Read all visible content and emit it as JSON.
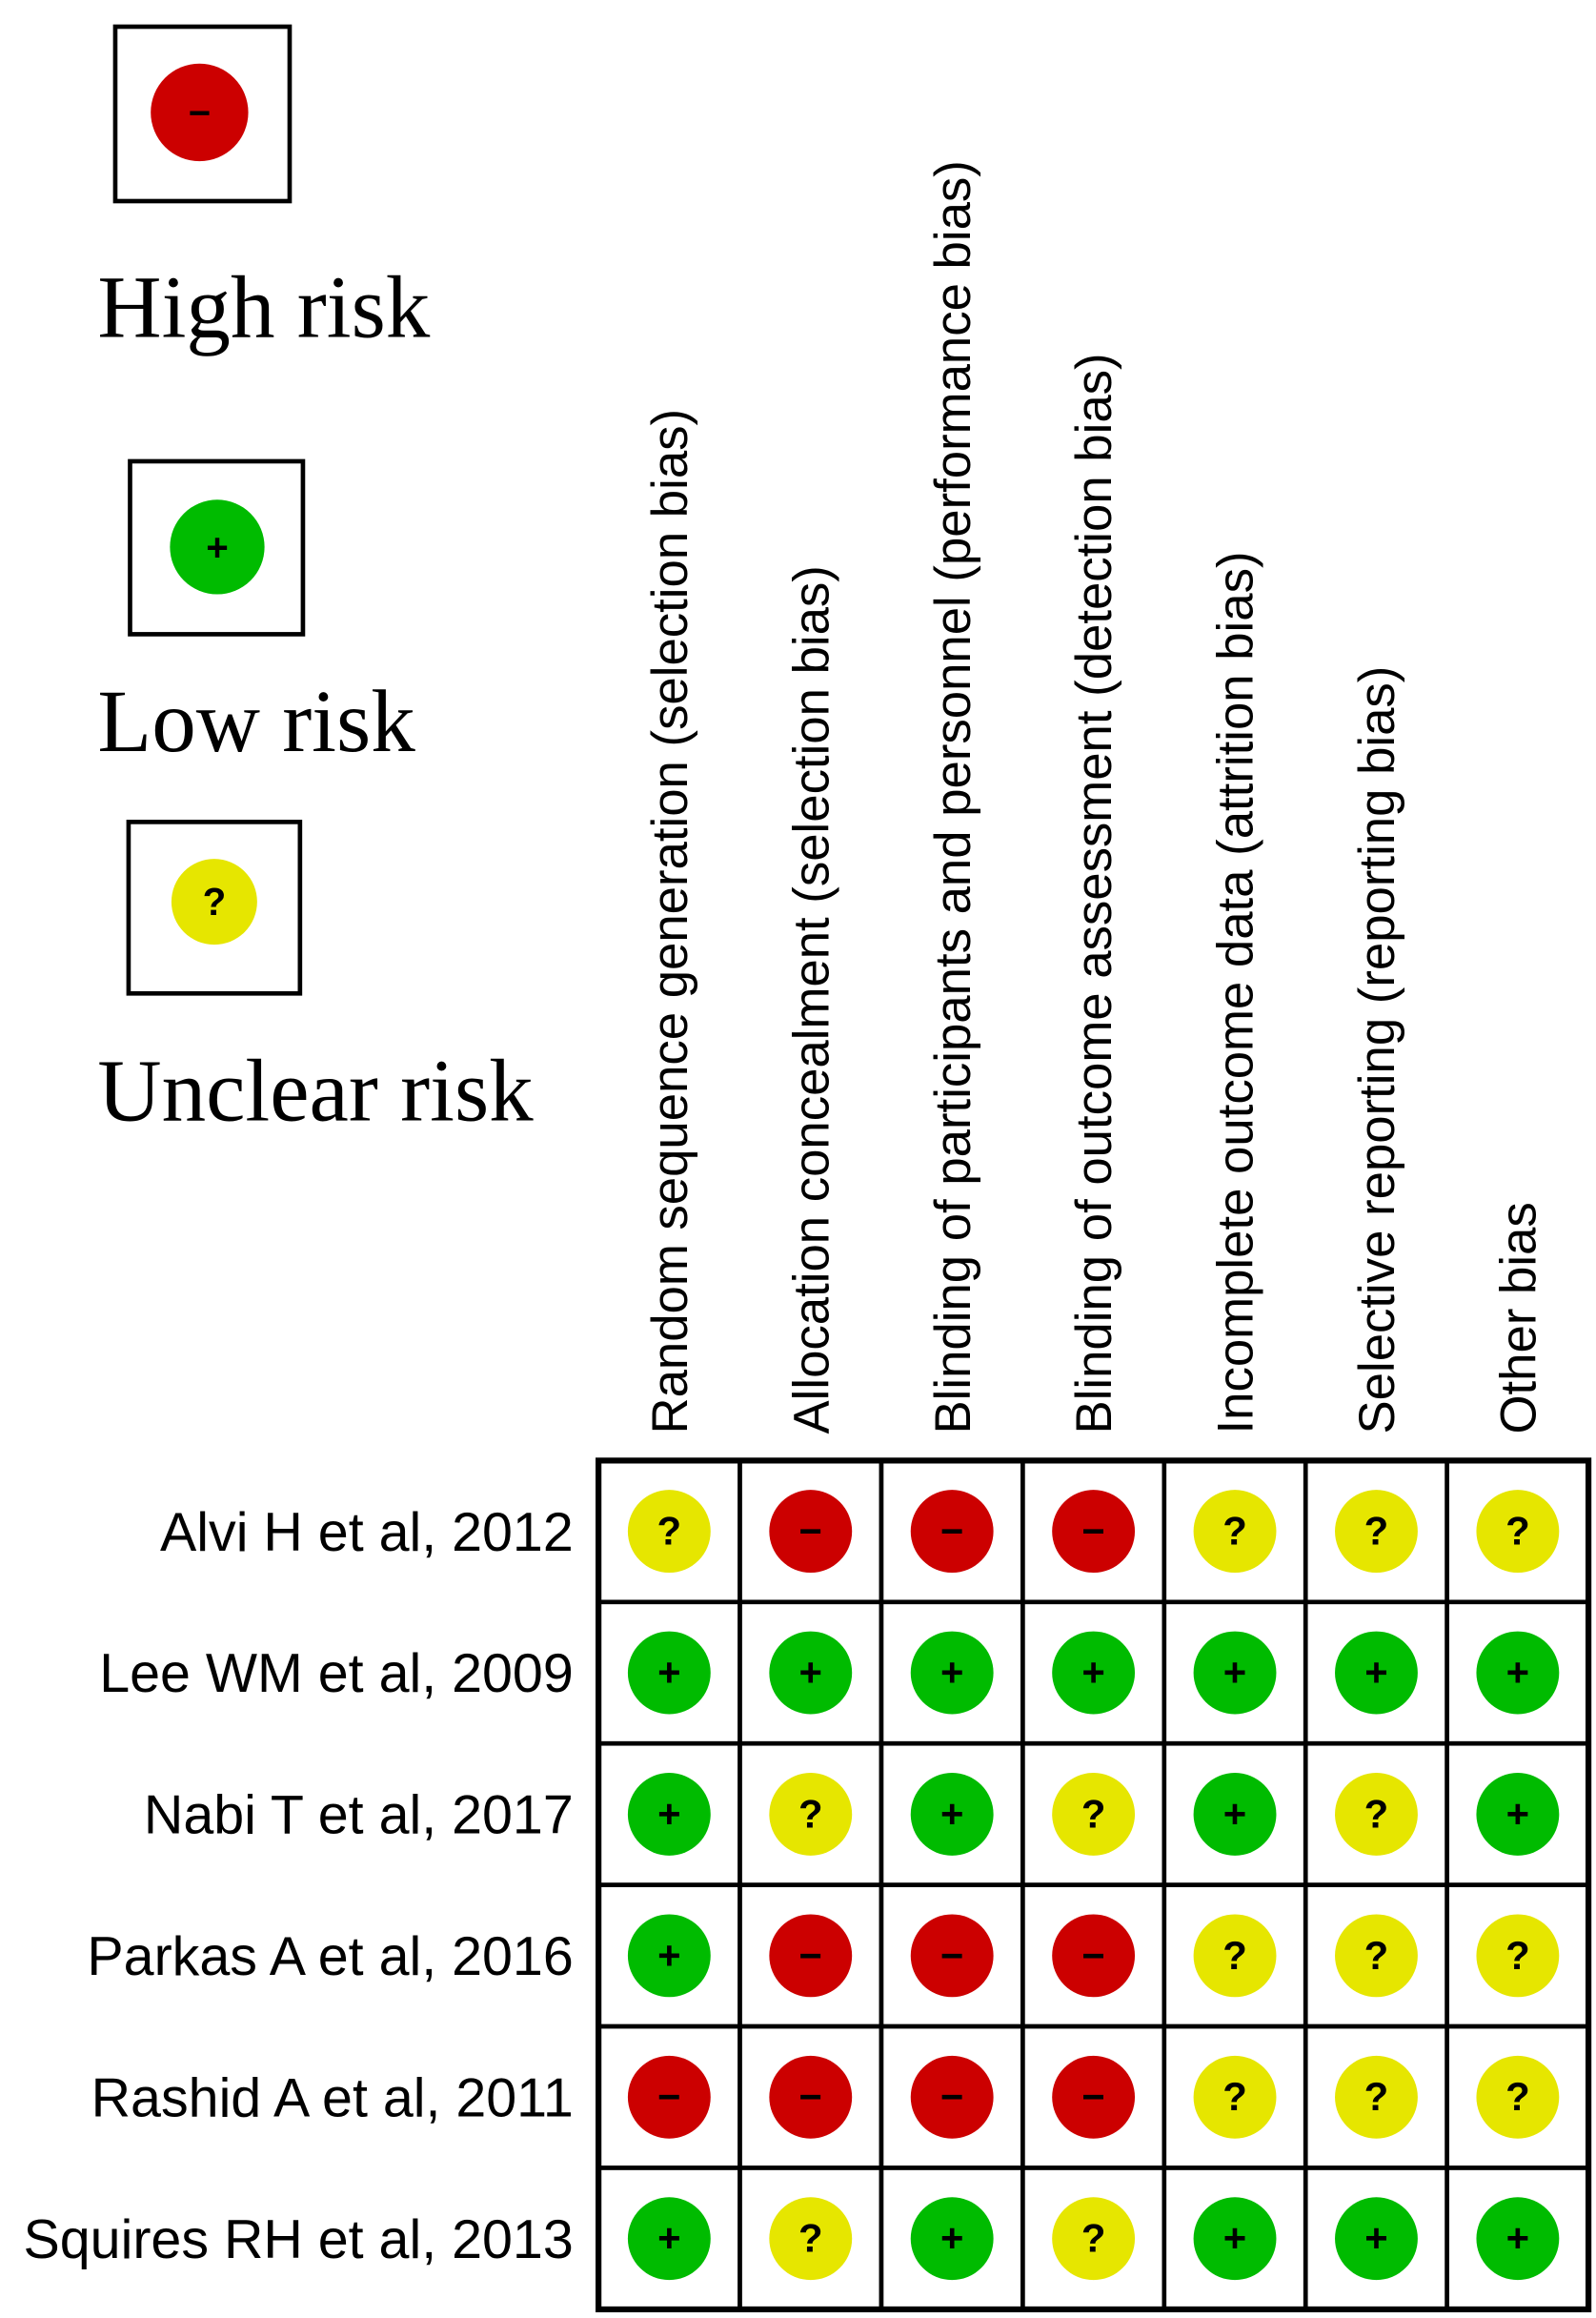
{
  "legend": [
    {
      "symbol": "−",
      "label": "High risk",
      "color": "#cc0000"
    },
    {
      "symbol": "+",
      "label": "Low risk",
      "color": "#00bb00"
    },
    {
      "symbol": "?",
      "label": "Unclear risk",
      "color": "#e6e600"
    }
  ],
  "columns": [
    "Random sequence generation (selection bias)",
    "Allocation concealment (selection bias)",
    "Blinding of participants and personnel (performance bias)",
    "Blinding of outcome assessment (detection bias)",
    "Incomplete outcome data (attrition bias)",
    "Selective reporting (reporting bias)",
    "Other bias"
  ],
  "rows": [
    {
      "study": "Alvi H et al, 2012",
      "cells": [
        "?",
        "−",
        "−",
        "−",
        "?",
        "?",
        "?"
      ]
    },
    {
      "study": "Lee WM et al, 2009",
      "cells": [
        "+",
        "+",
        "+",
        "+",
        "+",
        "+",
        "+"
      ]
    },
    {
      "study": "Nabi T et al, 2017",
      "cells": [
        "+",
        "?",
        "+",
        "?",
        "+",
        "?",
        "+"
      ]
    },
    {
      "study": "Parkas A et al, 2016",
      "cells": [
        "+",
        "−",
        "−",
        "−",
        "?",
        "?",
        "?"
      ]
    },
    {
      "study": "Rashid A et al, 2011",
      "cells": [
        "−",
        "−",
        "−",
        "−",
        "?",
        "?",
        "?"
      ]
    },
    {
      "study": "Squires RH et al, 2013",
      "cells": [
        "+",
        "?",
        "+",
        "?",
        "+",
        "+",
        "+"
      ]
    }
  ]
}
